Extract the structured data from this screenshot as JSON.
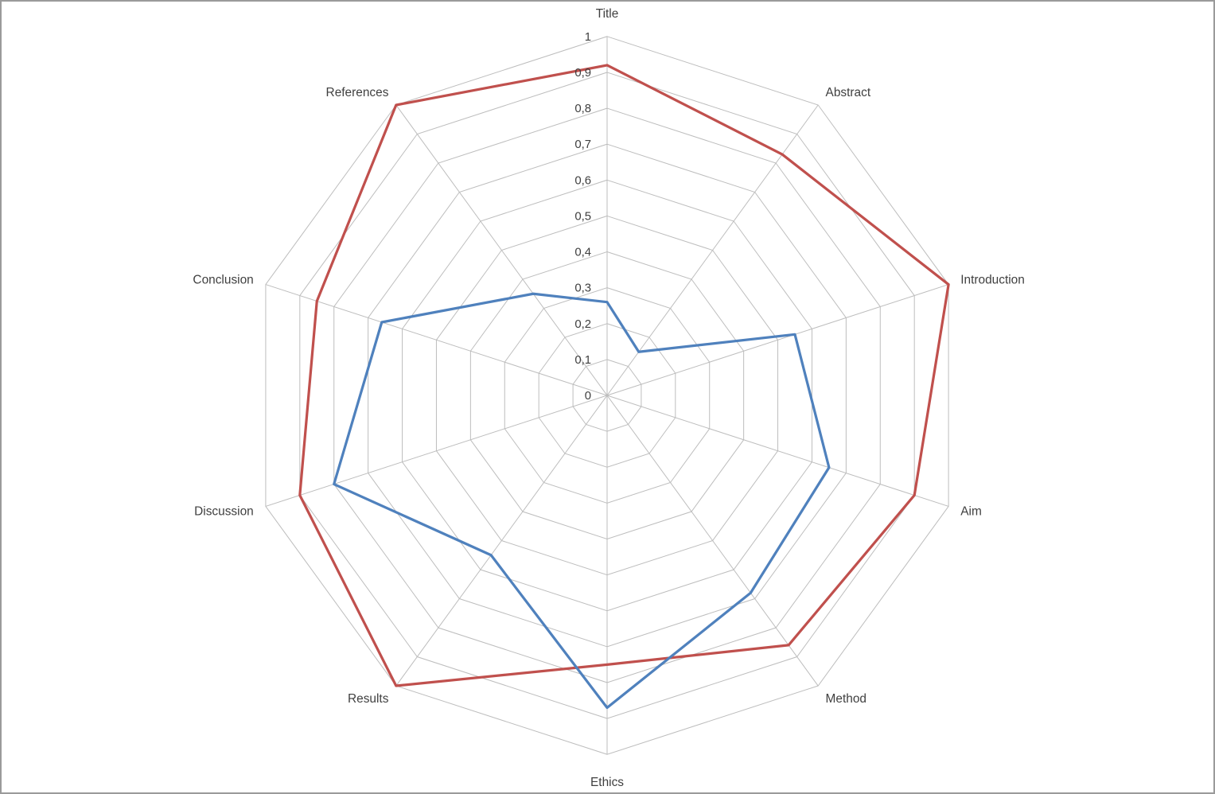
{
  "page": {
    "background": "#ffffff"
  },
  "chart_data": {
    "type": "radar",
    "title": "",
    "legend": "none",
    "grid": true,
    "grid_color": "#bdbdbd",
    "label_color": "#3f3f3f",
    "rlim": [
      0,
      1
    ],
    "categories": [
      "Title",
      "Abstract",
      "Introduction",
      "Aim",
      "Method",
      "Ethics",
      "Results",
      "Discussion",
      "Conclusion",
      "References"
    ],
    "ticks": {
      "values": [
        0,
        0.1,
        0.2,
        0.3,
        0.4,
        0.5,
        0.6,
        0.7,
        0.8,
        0.9,
        1
      ],
      "labels": [
        "0",
        "0,1",
        "0,2",
        "0,3",
        "0,4",
        "0,5",
        "0,6",
        "0,7",
        "0,8",
        "0,9",
        "1"
      ]
    },
    "series": [
      {
        "name": "red",
        "color": "#c0504d",
        "values": [
          0.92,
          0.83,
          1.0,
          0.9,
          0.86,
          0.75,
          1.0,
          0.9,
          0.85,
          1.0
        ]
      },
      {
        "name": "blue",
        "color": "#4f81bd",
        "values": [
          0.26,
          0.15,
          0.55,
          0.65,
          0.68,
          0.87,
          0.55,
          0.8,
          0.66,
          0.35
        ]
      }
    ]
  }
}
